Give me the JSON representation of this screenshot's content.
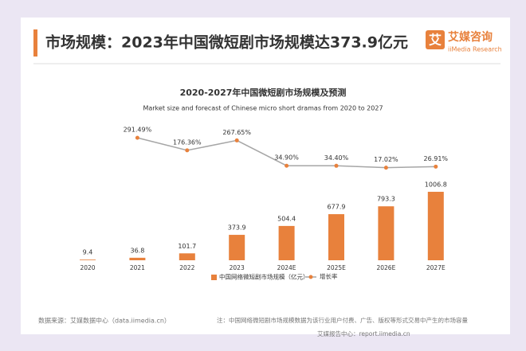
{
  "header": {
    "title": "市场规模：2023年中国微短剧市场规模达373.9亿元",
    "logo_char": "艾",
    "logo_name": "艾媒咨询",
    "logo_sub": "iiMedia Research"
  },
  "chart_data": {
    "type": "bar",
    "title": "2020-2027年中国微短剧市场规模及预测",
    "subtitle": "Market size and forecast of Chinese micro short dramas from 2020 to 2027",
    "categories": [
      "2020",
      "2021",
      "2022",
      "2023",
      "2024E",
      "2025E",
      "2026E",
      "2027E"
    ],
    "series": [
      {
        "name": "中国网络微短剧市场规模（亿元）",
        "color": "#e8813c",
        "values": [
          9.4,
          36.8,
          101.7,
          373.9,
          504.4,
          677.9,
          793.3,
          1006.8
        ]
      },
      {
        "name": "增长率",
        "color": "#a6a6a6",
        "axis": "y2",
        "values": [
          null,
          291.49,
          176.36,
          267.65,
          34.9,
          34.4,
          17.02,
          26.91
        ],
        "value_labels": [
          null,
          "291.49%",
          "176.36%",
          "267.65%",
          "34.90%",
          "34.40%",
          "17.02%",
          "26.91%"
        ]
      }
    ],
    "ylim": [
      0,
      1100
    ],
    "y2lim": [
      0,
      300
    ]
  },
  "footer": {
    "source": "数据来源：艾媒数据中心（data.iimedia.cn）",
    "note": "注：中国网络微短剧市场规模数据为该行业用户付费、广告、版权等形式交易中产生的市场容量",
    "site": "艾媒报告中心：report.iimedia.cn"
  }
}
